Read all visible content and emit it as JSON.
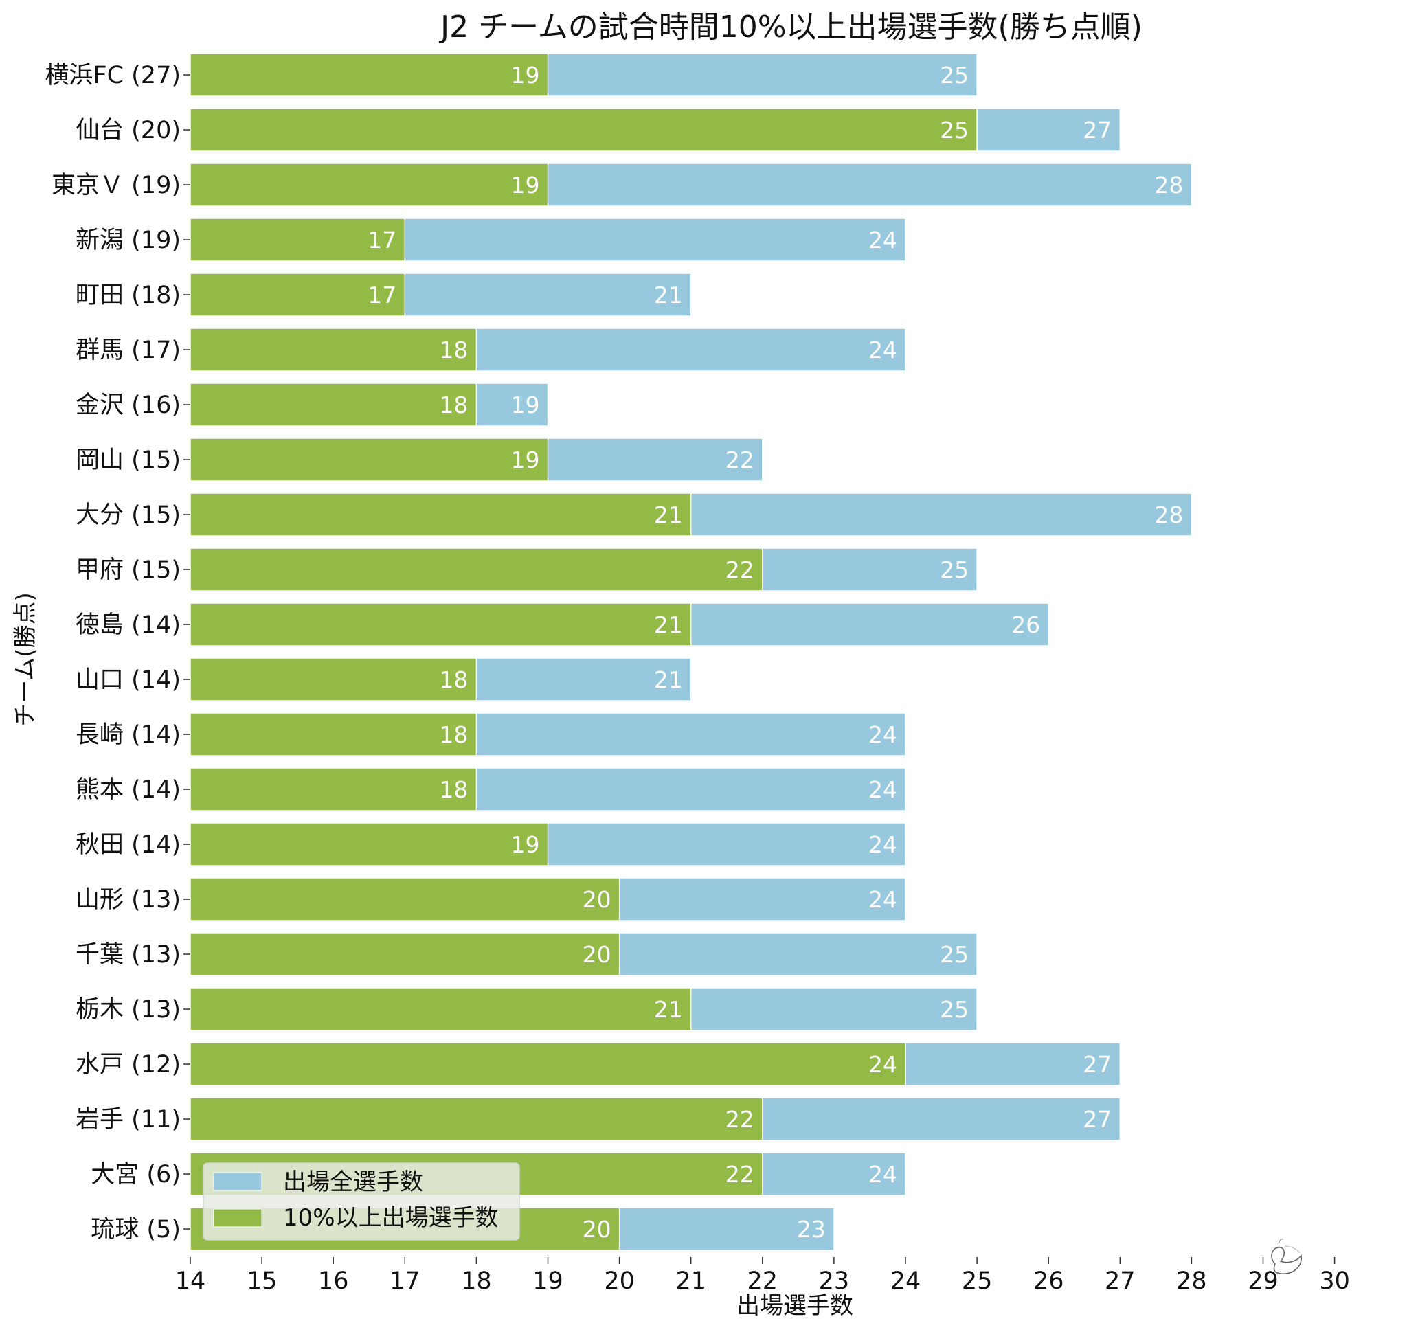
{
  "chart_data": {
    "type": "bar",
    "orientation": "horizontal",
    "stacking": "overlay",
    "title": "J2 チームの試合時間10%以上出場選手数(勝ち点順)",
    "xlabel": "出場選手数",
    "ylabel": "チーム(勝点)",
    "xlim": [
      14,
      30
    ],
    "xticks": [
      "14",
      "15",
      "16",
      "17",
      "18",
      "19",
      "20",
      "21",
      "22",
      "23",
      "24",
      "25",
      "26",
      "27",
      "28",
      "29",
      "30"
    ],
    "categories": [
      "横浜FC (27)",
      "仙台 (20)",
      "東京Ｖ (19)",
      "新潟 (19)",
      "町田 (18)",
      "群馬 (17)",
      "金沢 (16)",
      "岡山 (15)",
      "大分 (15)",
      "甲府 (15)",
      "徳島 (14)",
      "山口 (14)",
      "長崎 (14)",
      "熊本 (14)",
      "秋田 (14)",
      "山形 (13)",
      "千葉 (13)",
      "栃木 (13)",
      "水戸 (12)",
      "岩手 (11)",
      "大宮 (6)",
      "琉球 (5)"
    ],
    "series": [
      {
        "name": "出場全選手数",
        "color": "#97c8de",
        "values": [
          25,
          27,
          28,
          24,
          21,
          24,
          19,
          22,
          28,
          25,
          26,
          21,
          24,
          24,
          24,
          24,
          25,
          25,
          27,
          27,
          24,
          23
        ]
      },
      {
        "name": "10%以上出場選手数",
        "color": "#93b947",
        "values": [
          19,
          25,
          19,
          17,
          17,
          18,
          18,
          19,
          21,
          22,
          21,
          18,
          18,
          18,
          19,
          20,
          20,
          21,
          24,
          22,
          22,
          20
        ]
      }
    ],
    "legend": {
      "position": "lower-left"
    },
    "grid": false
  }
}
